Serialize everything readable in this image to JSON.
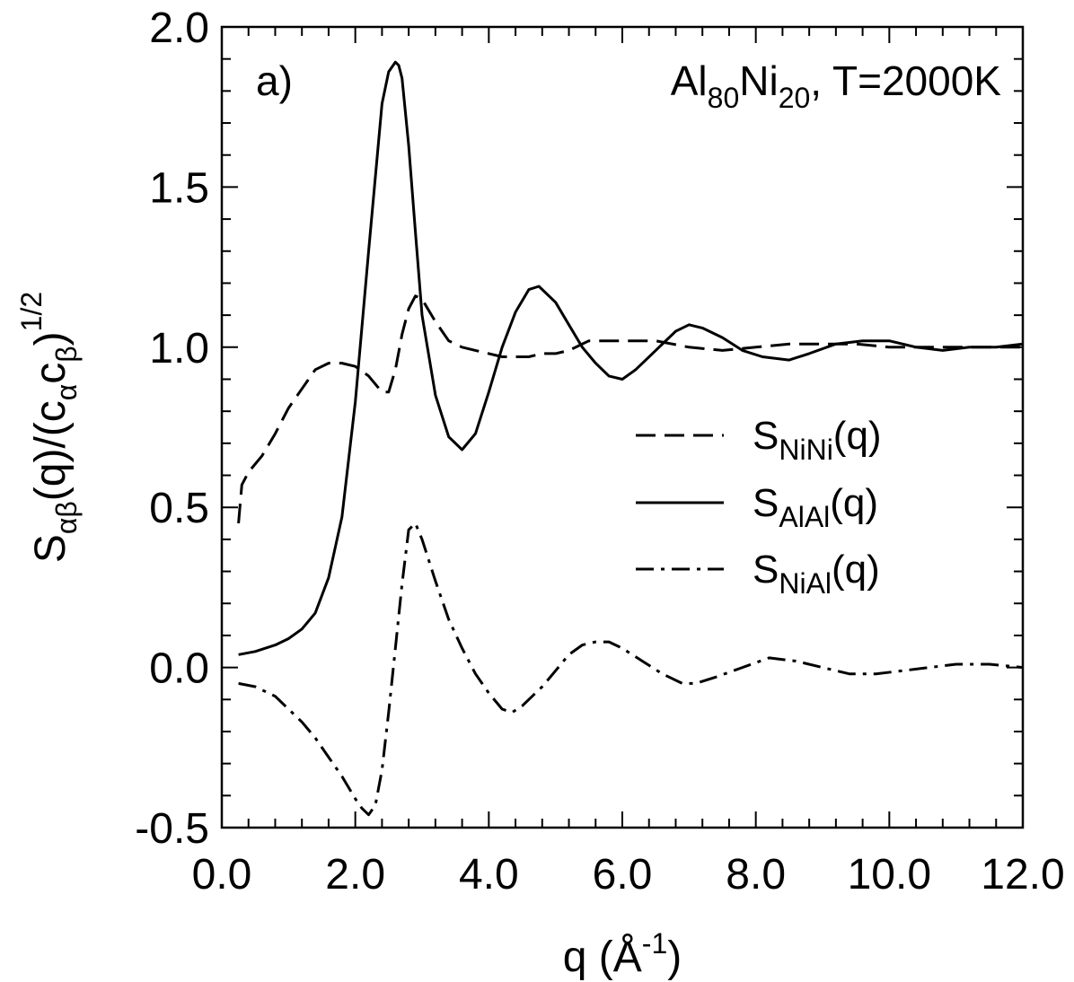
{
  "chart_data": {
    "type": "line",
    "panel_label": "a)",
    "annotation": {
      "main1": "Al",
      "sub1": "80",
      "main2": "Ni",
      "sub2": "20",
      "rest": ", T=2000K"
    },
    "xlabel": {
      "main": "q (Å",
      "sup": "-1",
      "close": ")"
    },
    "ylabel": {
      "s": "S",
      "s_sub": "αβ",
      "mid": "(q)/(c",
      "c1_sub": "α",
      "c": "c",
      "c2_sub": "β",
      "close": ")",
      "sup": "1/2"
    },
    "xlim": [
      0.0,
      12.0
    ],
    "ylim": [
      -0.5,
      2.0
    ],
    "xticks": [
      "0.0",
      "2.0",
      "4.0",
      "6.0",
      "8.0",
      "10.0",
      "12.0"
    ],
    "yticks": [
      "-0.5",
      "0.0",
      "0.5",
      "1.0",
      "1.5",
      "2.0"
    ],
    "grid": false,
    "legend_position": "center-right",
    "series": [
      {
        "name_main": "S",
        "name_sub": "NiNi",
        "name_tail": "(q)",
        "style": "dashed",
        "x": [
          0.25,
          0.3,
          0.4,
          0.6,
          0.8,
          1.0,
          1.2,
          1.4,
          1.6,
          1.8,
          2.0,
          2.2,
          2.4,
          2.5,
          2.6,
          2.7,
          2.8,
          2.9,
          3.0,
          3.2,
          3.4,
          3.6,
          3.8,
          4.0,
          4.2,
          4.4,
          4.6,
          4.8,
          5.0,
          5.2,
          5.5,
          6.0,
          6.5,
          7.0,
          7.5,
          8.0,
          8.5,
          9.0,
          9.5,
          10.0,
          10.5,
          11.0,
          11.5,
          12.0
        ],
        "y": [
          0.45,
          0.57,
          0.61,
          0.66,
          0.73,
          0.81,
          0.87,
          0.93,
          0.95,
          0.95,
          0.94,
          0.91,
          0.86,
          0.86,
          0.93,
          1.04,
          1.12,
          1.16,
          1.15,
          1.08,
          1.02,
          1.0,
          0.99,
          0.98,
          0.97,
          0.97,
          0.97,
          0.98,
          0.98,
          0.99,
          1.02,
          1.02,
          1.02,
          1.0,
          0.99,
          1.0,
          1.01,
          1.01,
          1.01,
          1.0,
          1.0,
          1.0,
          1.0,
          1.0
        ]
      },
      {
        "name_main": "S",
        "name_sub": "AlAl",
        "name_tail": "(q)",
        "style": "solid",
        "x": [
          0.25,
          0.5,
          0.8,
          1.0,
          1.2,
          1.4,
          1.6,
          1.8,
          2.0,
          2.2,
          2.4,
          2.5,
          2.6,
          2.65,
          2.7,
          2.8,
          2.9,
          3.0,
          3.2,
          3.4,
          3.6,
          3.8,
          4.0,
          4.2,
          4.4,
          4.6,
          4.75,
          5.0,
          5.2,
          5.4,
          5.6,
          5.8,
          6.0,
          6.2,
          6.5,
          6.8,
          7.0,
          7.2,
          7.5,
          7.8,
          8.1,
          8.5,
          8.8,
          9.2,
          9.6,
          10.0,
          10.4,
          10.8,
          11.2,
          11.6,
          12.0
        ],
        "y": [
          0.04,
          0.05,
          0.07,
          0.09,
          0.12,
          0.17,
          0.28,
          0.47,
          0.83,
          1.3,
          1.76,
          1.86,
          1.89,
          1.88,
          1.84,
          1.63,
          1.36,
          1.1,
          0.85,
          0.72,
          0.68,
          0.73,
          0.86,
          1.0,
          1.11,
          1.18,
          1.19,
          1.14,
          1.07,
          1.0,
          0.95,
          0.91,
          0.9,
          0.93,
          0.99,
          1.05,
          1.07,
          1.06,
          1.03,
          0.99,
          0.97,
          0.96,
          0.98,
          1.01,
          1.02,
          1.02,
          1.0,
          0.99,
          1.0,
          1.0,
          1.01
        ]
      },
      {
        "name_main": "S",
        "name_sub": "NiAl",
        "name_tail": "(q)",
        "style": "dashdot",
        "x": [
          0.25,
          0.5,
          0.8,
          1.0,
          1.2,
          1.4,
          1.6,
          1.8,
          2.0,
          2.1,
          2.2,
          2.3,
          2.4,
          2.5,
          2.6,
          2.7,
          2.8,
          2.9,
          3.0,
          3.2,
          3.4,
          3.6,
          3.8,
          4.0,
          4.2,
          4.35,
          4.5,
          4.8,
          5.0,
          5.2,
          5.4,
          5.6,
          5.8,
          6.0,
          6.3,
          6.6,
          6.9,
          7.1,
          7.4,
          7.8,
          8.2,
          8.6,
          9.0,
          9.4,
          9.8,
          10.2,
          10.6,
          11.0,
          11.5,
          12.0
        ],
        "y": [
          -0.05,
          -0.06,
          -0.09,
          -0.13,
          -0.17,
          -0.22,
          -0.28,
          -0.34,
          -0.41,
          -0.44,
          -0.46,
          -0.43,
          -0.32,
          -0.14,
          0.06,
          0.26,
          0.43,
          0.45,
          0.4,
          0.27,
          0.15,
          0.06,
          -0.02,
          -0.08,
          -0.13,
          -0.14,
          -0.12,
          -0.06,
          -0.01,
          0.04,
          0.07,
          0.08,
          0.08,
          0.06,
          0.02,
          -0.02,
          -0.05,
          -0.05,
          -0.03,
          0.0,
          0.03,
          0.02,
          0.0,
          -0.02,
          -0.02,
          -0.01,
          0.0,
          0.01,
          0.01,
          0.0
        ]
      }
    ]
  }
}
